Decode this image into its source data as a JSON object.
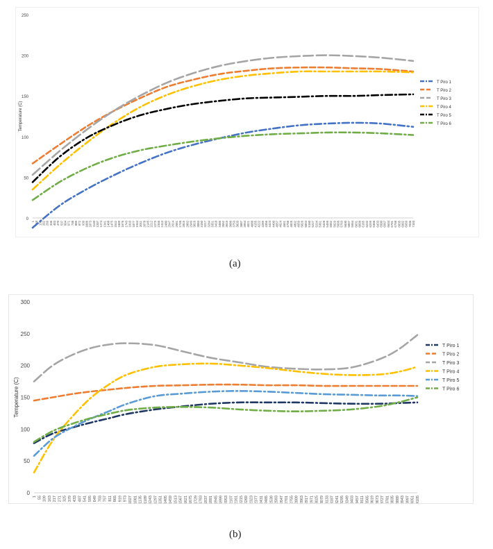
{
  "chart_data": [
    {
      "type": "line",
      "title": "",
      "xlabel": "",
      "ylabel": "Temperature (C)",
      "ylim": [
        0,
        250
      ],
      "yticks": [
        0,
        50,
        100,
        150,
        200,
        250
      ],
      "grid": false,
      "legend_position": "right",
      "x_ticks": [
        1,
        68,
        135,
        202,
        269,
        336,
        403,
        470,
        537,
        604,
        671,
        738,
        805,
        872,
        939,
        1006,
        1073,
        1140,
        1207,
        1274,
        1341,
        1408,
        1475,
        1542,
        1609,
        1676,
        1743,
        1810,
        1877,
        1944,
        2011,
        2078,
        2145,
        2212,
        2279,
        2346,
        2413,
        2480,
        2547,
        2614,
        2681,
        2748,
        2815,
        2882,
        2949,
        3016,
        3083,
        3150,
        3217,
        3284,
        3351,
        3418,
        3485,
        3552,
        3619,
        3686,
        3753,
        3820,
        3887,
        3954,
        4021,
        4088,
        4155,
        4222,
        4289,
        4356,
        4423,
        4490,
        4557,
        4624,
        4691,
        4758,
        4825,
        4892,
        4959,
        5026,
        5093,
        5160,
        5227,
        5294,
        5361,
        5428,
        5495,
        5562,
        5629,
        5696,
        5763,
        5830,
        5897,
        5964,
        6031,
        6098,
        6165,
        6232,
        6299,
        6366,
        6433,
        6500,
        6567,
        6634,
        6701,
        6768,
        6835,
        6902,
        6969,
        7036,
        7103
      ],
      "x_points": [
        1,
        500,
        1000,
        1500,
        2000,
        2500,
        3000,
        3500,
        4000,
        4500,
        5000,
        5500,
        6000,
        6500,
        7103
      ],
      "series": [
        {
          "name": "T Piro 1",
          "color": "#4472C4",
          "dash": "10 4 2 4",
          "values": [
            -12,
            15,
            35,
            52,
            67,
            80,
            90,
            98,
            105,
            110,
            114,
            116,
            117,
            116,
            112
          ]
        },
        {
          "name": "T Piro 2",
          "color": "#ED7D31",
          "dash": "8 4",
          "values": [
            67,
            90,
            112,
            131,
            147,
            161,
            170,
            177,
            181,
            184,
            185,
            185,
            184,
            183,
            180
          ]
        },
        {
          "name": "T Piro 3",
          "color": "#A5A5A5",
          "dash": "14 5",
          "values": [
            53,
            82,
            108,
            131,
            150,
            166,
            178,
            187,
            193,
            197,
            199,
            200,
            199,
            197,
            193
          ]
        },
        {
          "name": "T Piro 4",
          "color": "#FFC000",
          "dash": "10 4 2 4",
          "values": [
            35,
            65,
            92,
            116,
            136,
            151,
            162,
            170,
            175,
            178,
            180,
            180,
            180,
            180,
            179
          ]
        },
        {
          "name": "T Piro 5",
          "color": "#000000",
          "dash": "10 4 2 4",
          "values": [
            44,
            75,
            98,
            114,
            126,
            134,
            140,
            144,
            147,
            148,
            149,
            150,
            150,
            151,
            152
          ]
        },
        {
          "name": "T Piro 6",
          "color": "#70AD47",
          "dash": "10 4 2 4",
          "values": [
            22,
            44,
            61,
            74,
            83,
            89,
            94,
            98,
            101,
            103,
            104,
            105,
            105,
            104,
            102
          ]
        }
      ]
    },
    {
      "type": "line",
      "title": "",
      "xlabel": "",
      "ylabel": "Temperature (C)",
      "ylim": [
        0,
        300
      ],
      "yticks": [
        0,
        50,
        100,
        150,
        200,
        250,
        300
      ],
      "grid": false,
      "legend_position": "right",
      "x_ticks": [
        1,
        55,
        109,
        163,
        217,
        271,
        325,
        379,
        433,
        487,
        541,
        595,
        649,
        703,
        757,
        811,
        865,
        919,
        973,
        1027,
        1081,
        1135,
        1189,
        1243,
        1297,
        1351,
        1405,
        1459,
        1513,
        1567,
        1621,
        1675,
        1729,
        1783,
        1837,
        1891,
        1945,
        1999,
        2053,
        2107,
        2161,
        2215,
        2269,
        2323,
        2377,
        2431,
        2485,
        2539,
        2593,
        2647,
        2701,
        2755,
        2809,
        2863,
        2917,
        2971,
        3025,
        3079,
        3133,
        3187,
        3241,
        3295,
        3349,
        3403,
        3457,
        3511,
        3565,
        3619,
        3673,
        3727,
        3781,
        3835,
        3889,
        3943,
        3997,
        4051,
        4105
      ],
      "x_points": [
        1,
        200,
        400,
        600,
        800,
        1000,
        1300,
        1600,
        1900,
        2200,
        2500,
        2800,
        3100,
        3400,
        3700,
        3900,
        4105
      ],
      "series": [
        {
          "name": "T Piro 1",
          "color": "#1F3864",
          "dash": "10 4 2 4",
          "values": [
            78,
            93,
            102,
            110,
            117,
            124,
            131,
            136,
            140,
            142,
            142,
            142,
            141,
            140,
            140,
            141,
            142
          ]
        },
        {
          "name": "T Piro 2",
          "color": "#ED7D31",
          "dash": "8 4",
          "values": [
            145,
            150,
            155,
            159,
            162,
            165,
            168,
            169,
            170,
            170,
            169,
            169,
            168,
            168,
            168,
            168,
            168
          ]
        },
        {
          "name": "T Piro 3",
          "color": "#A5A5A5",
          "dash": "14 5",
          "values": [
            175,
            200,
            216,
            227,
            233,
            235,
            232,
            222,
            212,
            205,
            198,
            195,
            194,
            197,
            210,
            225,
            248
          ]
        },
        {
          "name": "T Piro 4",
          "color": "#FFC000",
          "dash": "10 4 2 4",
          "values": [
            32,
            82,
            118,
            148,
            170,
            186,
            198,
            202,
            203,
            200,
            196,
            191,
            187,
            185,
            186,
            190,
            198
          ]
        },
        {
          "name": "T Piro 5",
          "color": "#5B9BD5",
          "dash": "10 4 2 4",
          "values": [
            58,
            85,
            102,
            116,
            128,
            140,
            152,
            156,
            159,
            160,
            159,
            157,
            155,
            154,
            153,
            153,
            152
          ]
        },
        {
          "name": "T Piro 6",
          "color": "#70AD47",
          "dash": "10 4 2 4",
          "values": [
            80,
            97,
            108,
            117,
            124,
            130,
            134,
            135,
            134,
            131,
            129,
            128,
            129,
            131,
            136,
            142,
            150
          ]
        }
      ]
    }
  ],
  "captions": [
    "(a)",
    "(b)"
  ]
}
